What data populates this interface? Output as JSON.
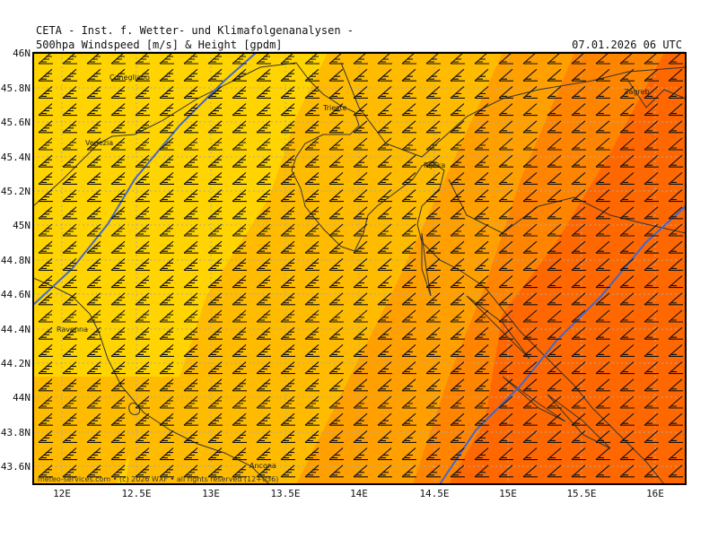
{
  "header": {
    "line1": "CETA - Inst. f. Wetter- und Klimafolgenanalysen -",
    "title": "500hpa Windspeed [m/s] & Height [gpdm]",
    "datetime": "07.01.2026 06 UTC"
  },
  "axes": {
    "lat_labels": [
      "46N",
      "45.8N",
      "45.6N",
      "45.4N",
      "45.2N",
      "45N",
      "44.8N",
      "44.6N",
      "44.4N",
      "44.2N",
      "44N",
      "43.8N",
      "43.6N"
    ],
    "lon_labels": [
      "12E",
      "12.5E",
      "13E",
      "13.5E",
      "14E",
      "14.5E",
      "15E",
      "15.5E",
      "16E"
    ]
  },
  "cities": [
    {
      "name": "Conegliano"
    },
    {
      "name": "Venezia"
    },
    {
      "name": "Trieste"
    },
    {
      "name": "Rijeka"
    },
    {
      "name": "Zagreb"
    },
    {
      "name": "Ravenna"
    },
    {
      "name": "Ancona"
    }
  ],
  "credit": "meteo-services.com • (c) 2026 WXF • all rights reserved (12+036)",
  "colors": {
    "speed_band_1": "#ffd400",
    "speed_band_2": "#ffbb00",
    "speed_band_3": "#ffa000",
    "speed_band_4": "#ff8500",
    "speed_band_5": "#ff6800",
    "height_contour": "#4466cc",
    "coastline": "#333333"
  }
}
